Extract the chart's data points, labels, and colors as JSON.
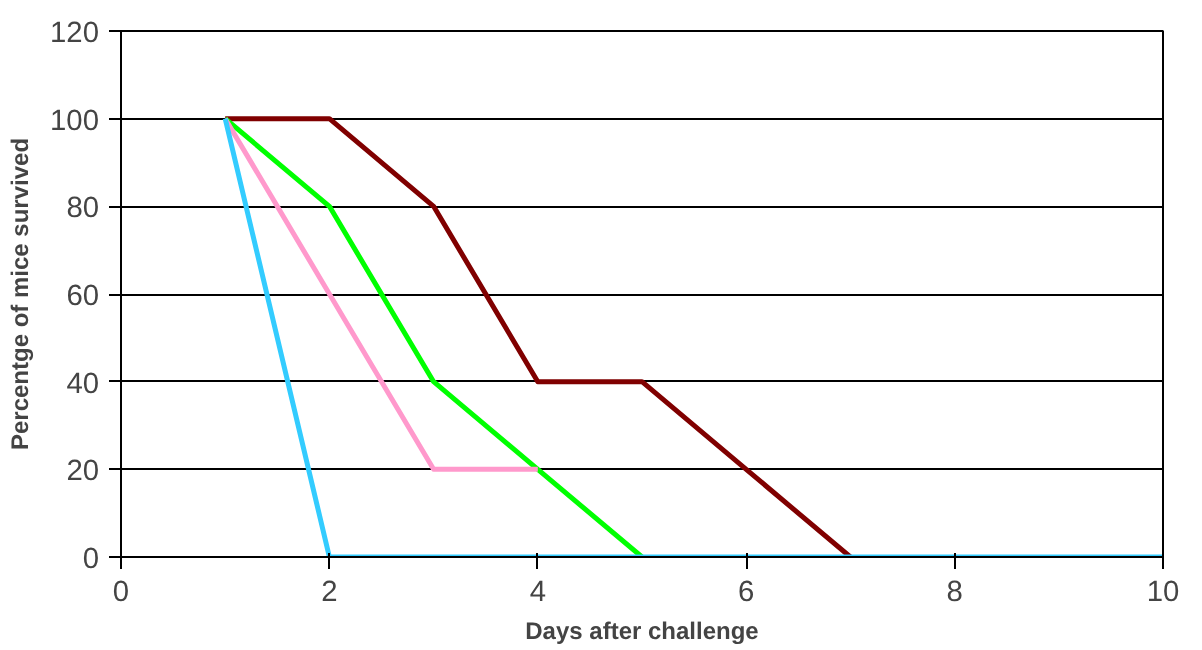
{
  "chart_data": {
    "type": "line",
    "xlabel": "Days after challenge",
    "ylabel": "Percentge of mice survived",
    "xlim": [
      0,
      10
    ],
    "xticks": [
      0,
      2,
      4,
      6,
      8,
      10
    ],
    "ylim": [
      0,
      120
    ],
    "yticks": [
      0,
      20,
      40,
      60,
      80,
      100,
      120
    ],
    "grid": "y",
    "marker": "none",
    "line_style": "solid",
    "series": [
      {
        "color": "#800000",
        "x": [
          1,
          2,
          3,
          4,
          5,
          6,
          7
        ],
        "values": [
          100,
          100,
          80,
          40,
          40,
          20,
          0
        ]
      },
      {
        "color": "#00ff00",
        "x": [
          1,
          2,
          3,
          4,
          5
        ],
        "values": [
          100,
          80,
          40,
          20,
          0
        ]
      },
      {
        "color": "#ff99cc",
        "x": [
          1,
          2,
          3,
          4
        ],
        "values": [
          100,
          60,
          20,
          20
        ]
      },
      {
        "color": "#33ccff",
        "x": [
          1,
          2,
          3,
          4,
          5,
          6,
          7,
          8,
          9,
          10
        ],
        "values": [
          100,
          0,
          0,
          0,
          0,
          0,
          0,
          0,
          0,
          0
        ]
      }
    ]
  }
}
